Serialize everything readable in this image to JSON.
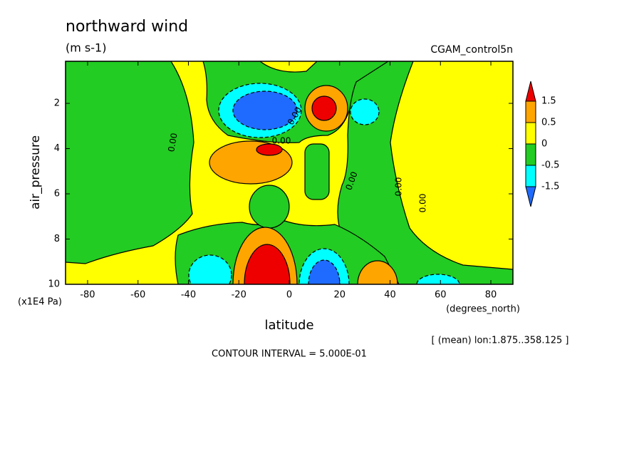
{
  "chart_data": {
    "type": "contour",
    "title": "northward wind",
    "subtitle": "(m s-1)",
    "dataset": "CGAM_control5n",
    "y_label": "air_pressure",
    "y_units": "(x1E4 Pa)",
    "x_label": "latitude",
    "x_units": "(degrees_north)",
    "note": "[ (mean) lon:1.875..358.125 ]",
    "contour_interval": "CONTOUR INTERVAL = 5.000E-01",
    "xlim": [
      -88.75,
      88.75
    ],
    "xticks": [
      -80,
      -60,
      -40,
      -20,
      0,
      20,
      40,
      60,
      80
    ],
    "ylim": [
      10,
      0.14
    ],
    "yticks": [
      2,
      4,
      6,
      8,
      10
    ],
    "contour_labels": [
      "0.00",
      "0.00",
      "0.00",
      "0.00",
      "0.00",
      "0.00"
    ],
    "colorbar": {
      "levels": [
        -1.5,
        -0.5,
        0,
        0.5,
        1.5
      ],
      "colors": [
        "#1f6bff",
        "#00ffff",
        "#22cc22",
        "#ffff00",
        "#ffa500",
        "#ee0000"
      ]
    }
  }
}
